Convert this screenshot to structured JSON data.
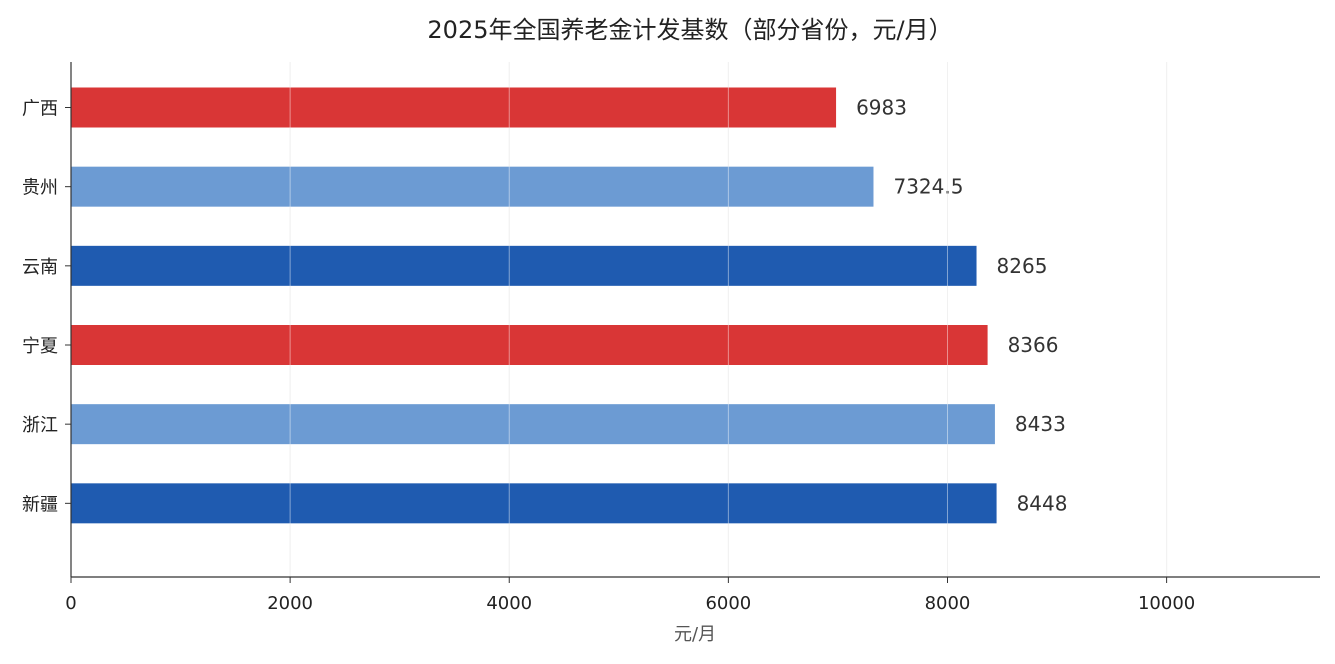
{
  "chart_data": {
    "type": "bar",
    "orientation": "horizontal",
    "title": "2025年全国养老金计发基数（部分省份，元/月）",
    "xlabel": "元/月",
    "ylabel": "",
    "categories": [
      "广西",
      "贵州",
      "云南",
      "宁夏",
      "浙江",
      "新疆"
    ],
    "values": [
      6983,
      7324.5,
      8265,
      8366,
      8433,
      8448
    ],
    "value_labels": [
      "6983",
      "7324.5",
      "8265",
      "8366",
      "8433",
      "8448"
    ],
    "bar_colors": [
      "#d93636",
      "#6c9bd3",
      "#1f5bb0",
      "#d93636",
      "#6c9bd3",
      "#1f5bb0"
    ],
    "xlim": [
      0,
      11400
    ],
    "xticks": [
      0,
      2000,
      4000,
      6000,
      8000,
      10000
    ],
    "xtick_labels": [
      "0",
      "2000",
      "4000",
      "6000",
      "8000",
      "10000"
    ],
    "grid": "vertical",
    "legend": "none"
  }
}
